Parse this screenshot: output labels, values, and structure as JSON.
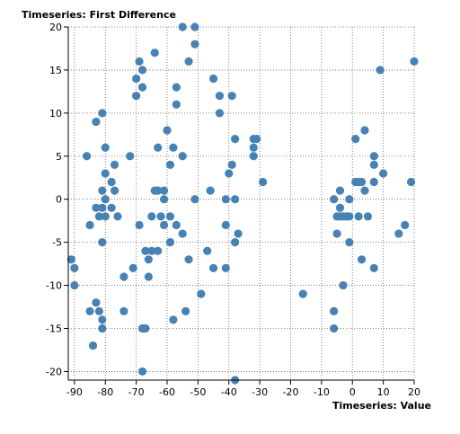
{
  "chart_data": {
    "type": "scatter",
    "title": "",
    "xlabel": "Timeseries: Value",
    "ylabel": "Timeseries: First Difference",
    "xlim": [
      -92,
      20
    ],
    "ylim": [
      -21,
      20
    ],
    "x_ticks": [
      -90,
      -80,
      -70,
      -60,
      -50,
      -40,
      -30,
      -20,
      -10,
      0,
      10,
      20
    ],
    "y_ticks": [
      -20,
      -15,
      -10,
      -5,
      0,
      5,
      10,
      15,
      20
    ],
    "grid": true,
    "point_color": "#4682b4",
    "points": [
      {
        "x": -91,
        "y": -7
      },
      {
        "x": -90,
        "y": -8
      },
      {
        "x": -90,
        "y": -10
      },
      {
        "x": -86,
        "y": 5
      },
      {
        "x": -85,
        "y": -3
      },
      {
        "x": -85,
        "y": -13
      },
      {
        "x": -84,
        "y": -17
      },
      {
        "x": -83,
        "y": 9
      },
      {
        "x": -83,
        "y": -1
      },
      {
        "x": -83,
        "y": -12
      },
      {
        "x": -82,
        "y": -2
      },
      {
        "x": -82,
        "y": -13
      },
      {
        "x": -81,
        "y": 10
      },
      {
        "x": -81,
        "y": 1
      },
      {
        "x": -81,
        "y": -1
      },
      {
        "x": -81,
        "y": -5
      },
      {
        "x": -81,
        "y": -14
      },
      {
        "x": -81,
        "y": -15
      },
      {
        "x": -80,
        "y": 6
      },
      {
        "x": -80,
        "y": 3
      },
      {
        "x": -80,
        "y": 0
      },
      {
        "x": -80,
        "y": -2
      },
      {
        "x": -78,
        "y": 2
      },
      {
        "x": -78,
        "y": -1
      },
      {
        "x": -77,
        "y": 4
      },
      {
        "x": -77,
        "y": 1
      },
      {
        "x": -76,
        "y": -2
      },
      {
        "x": -74,
        "y": -9
      },
      {
        "x": -74,
        "y": -13
      },
      {
        "x": -72,
        "y": 5
      },
      {
        "x": -71,
        "y": -8
      },
      {
        "x": -70,
        "y": 14
      },
      {
        "x": -70,
        "y": 12
      },
      {
        "x": -69,
        "y": 16
      },
      {
        "x": -69,
        "y": -3
      },
      {
        "x": -68,
        "y": 15
      },
      {
        "x": -68,
        "y": 13
      },
      {
        "x": -68,
        "y": -15
      },
      {
        "x": -68,
        "y": -20
      },
      {
        "x": -67,
        "y": -6
      },
      {
        "x": -67,
        "y": -15
      },
      {
        "x": -66,
        "y": -7
      },
      {
        "x": -66,
        "y": -9
      },
      {
        "x": -65,
        "y": -2
      },
      {
        "x": -65,
        "y": -6
      },
      {
        "x": -64,
        "y": 17
      },
      {
        "x": -64,
        "y": 1
      },
      {
        "x": -63,
        "y": 6
      },
      {
        "x": -63,
        "y": 1
      },
      {
        "x": -63,
        "y": -6
      },
      {
        "x": -62,
        "y": -2
      },
      {
        "x": -61,
        "y": 1
      },
      {
        "x": -61,
        "y": 0
      },
      {
        "x": -61,
        "y": -3
      },
      {
        "x": -60,
        "y": 8
      },
      {
        "x": -59,
        "y": 4
      },
      {
        "x": -59,
        "y": -2
      },
      {
        "x": -59,
        "y": -5
      },
      {
        "x": -58,
        "y": 6
      },
      {
        "x": -58,
        "y": -14
      },
      {
        "x": -57,
        "y": 13
      },
      {
        "x": -57,
        "y": 11
      },
      {
        "x": -57,
        "y": -3
      },
      {
        "x": -55,
        "y": 20
      },
      {
        "x": -55,
        "y": 5
      },
      {
        "x": -55,
        "y": -4
      },
      {
        "x": -54,
        "y": -13
      },
      {
        "x": -53,
        "y": 16
      },
      {
        "x": -53,
        "y": -7
      },
      {
        "x": -51,
        "y": 20
      },
      {
        "x": -51,
        "y": 18
      },
      {
        "x": -51,
        "y": 0
      },
      {
        "x": -49,
        "y": -11
      },
      {
        "x": -47,
        "y": -6
      },
      {
        "x": -46,
        "y": 1
      },
      {
        "x": -45,
        "y": 14
      },
      {
        "x": -45,
        "y": -8
      },
      {
        "x": -43,
        "y": 12
      },
      {
        "x": -43,
        "y": 10
      },
      {
        "x": -41,
        "y": 0
      },
      {
        "x": -41,
        "y": -3
      },
      {
        "x": -41,
        "y": -8
      },
      {
        "x": -40,
        "y": 3
      },
      {
        "x": -39,
        "y": 12
      },
      {
        "x": -39,
        "y": 4
      },
      {
        "x": -38,
        "y": 7
      },
      {
        "x": -38,
        "y": 0
      },
      {
        "x": -38,
        "y": -5
      },
      {
        "x": -38,
        "y": -21
      },
      {
        "x": -37,
        "y": -4
      },
      {
        "x": -32,
        "y": 7
      },
      {
        "x": -32,
        "y": 6
      },
      {
        "x": -32,
        "y": 5
      },
      {
        "x": -31,
        "y": 7
      },
      {
        "x": -29,
        "y": 2
      },
      {
        "x": -16,
        "y": -11
      },
      {
        "x": -6,
        "y": 0
      },
      {
        "x": -6,
        "y": -13
      },
      {
        "x": -6,
        "y": -15
      },
      {
        "x": -5,
        "y": -2
      },
      {
        "x": -5,
        "y": -4
      },
      {
        "x": -4,
        "y": 1
      },
      {
        "x": -4,
        "y": -1
      },
      {
        "x": -4,
        "y": -2
      },
      {
        "x": -3,
        "y": -2
      },
      {
        "x": -3,
        "y": -10
      },
      {
        "x": -2,
        "y": -2
      },
      {
        "x": -1,
        "y": 0
      },
      {
        "x": -1,
        "y": -2
      },
      {
        "x": -1,
        "y": -5
      },
      {
        "x": 1,
        "y": 7
      },
      {
        "x": 1,
        "y": 2
      },
      {
        "x": 2,
        "y": 2
      },
      {
        "x": 2,
        "y": -2
      },
      {
        "x": 3,
        "y": 2
      },
      {
        "x": 3,
        "y": -7
      },
      {
        "x": 4,
        "y": 8
      },
      {
        "x": 4,
        "y": 1
      },
      {
        "x": 5,
        "y": -2
      },
      {
        "x": 7,
        "y": 5
      },
      {
        "x": 7,
        "y": 4
      },
      {
        "x": 7,
        "y": 2
      },
      {
        "x": 7,
        "y": -8
      },
      {
        "x": 9,
        "y": 15
      },
      {
        "x": 10,
        "y": 3
      },
      {
        "x": 15,
        "y": -4
      },
      {
        "x": 17,
        "y": -3
      },
      {
        "x": 19,
        "y": 2
      },
      {
        "x": 20,
        "y": 16
      }
    ]
  }
}
